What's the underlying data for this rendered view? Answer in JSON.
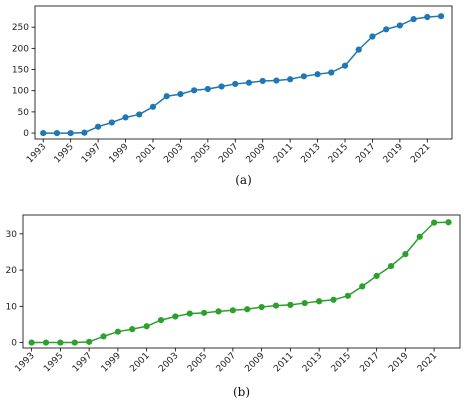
{
  "chart_data": [
    {
      "type": "line",
      "caption": "(a)",
      "x": [
        1993,
        1994,
        1995,
        1996,
        1997,
        1998,
        1999,
        2000,
        2001,
        2002,
        2003,
        2004,
        2005,
        2006,
        2007,
        2008,
        2009,
        2010,
        2011,
        2012,
        2013,
        2014,
        2015,
        2016,
        2017,
        2018,
        2019,
        2020,
        2021,
        2022
      ],
      "series": [
        {
          "color": "#1f77b4",
          "values": [
            0,
            0,
            0,
            1,
            15,
            25,
            37,
            44,
            62,
            87,
            92,
            101,
            104,
            110,
            116,
            119,
            123,
            124,
            127,
            134,
            139,
            143,
            159,
            197,
            228,
            245,
            254,
            269,
            274,
            276
          ]
        }
      ],
      "x_tick_labels": [
        "1993",
        "1995",
        "1997",
        "1999",
        "2001",
        "2003",
        "2005",
        "2007",
        "2009",
        "2011",
        "2013",
        "2015",
        "2017",
        "2019",
        "2021"
      ],
      "y_tick_labels": [
        "0",
        "50",
        "100",
        "150",
        "200",
        "250"
      ],
      "y_ticks": [
        0,
        50,
        100,
        150,
        200,
        250
      ],
      "xlim": [
        1992.4,
        2022.8
      ],
      "ylim": [
        -14,
        300
      ],
      "grid": false,
      "marker": "circle"
    },
    {
      "type": "line",
      "caption": "(b)",
      "x": [
        1993,
        1994,
        1995,
        1996,
        1997,
        1998,
        1999,
        2000,
        2001,
        2002,
        2003,
        2004,
        2005,
        2006,
        2007,
        2008,
        2009,
        2010,
        2011,
        2012,
        2013,
        2014,
        2015,
        2016,
        2017,
        2018,
        2019,
        2020,
        2021,
        2022
      ],
      "series": [
        {
          "color": "#2ca02c",
          "values": [
            0,
            0,
            0,
            0,
            0.2,
            1.7,
            3.0,
            3.7,
            4.5,
            6.2,
            7.2,
            8.0,
            8.2,
            8.6,
            8.9,
            9.2,
            9.8,
            10.2,
            10.4,
            10.9,
            11.4,
            11.8,
            12.9,
            15.5,
            18.4,
            21.1,
            24.4,
            29.2,
            33.1,
            33.2
          ]
        }
      ],
      "x_tick_labels": [
        "1993",
        "1995",
        "1997",
        "1999",
        "2001",
        "2003",
        "2005",
        "2007",
        "2009",
        "2011",
        "2013",
        "2015",
        "2017",
        "2019",
        "2021"
      ],
      "y_tick_labels": [
        "0",
        "10",
        "20",
        "30"
      ],
      "y_ticks": [
        0,
        10,
        20,
        30
      ],
      "xlim": [
        1992.4,
        2022.8
      ],
      "ylim": [
        -1.5,
        35.2
      ],
      "grid": false,
      "marker": "circle"
    }
  ]
}
